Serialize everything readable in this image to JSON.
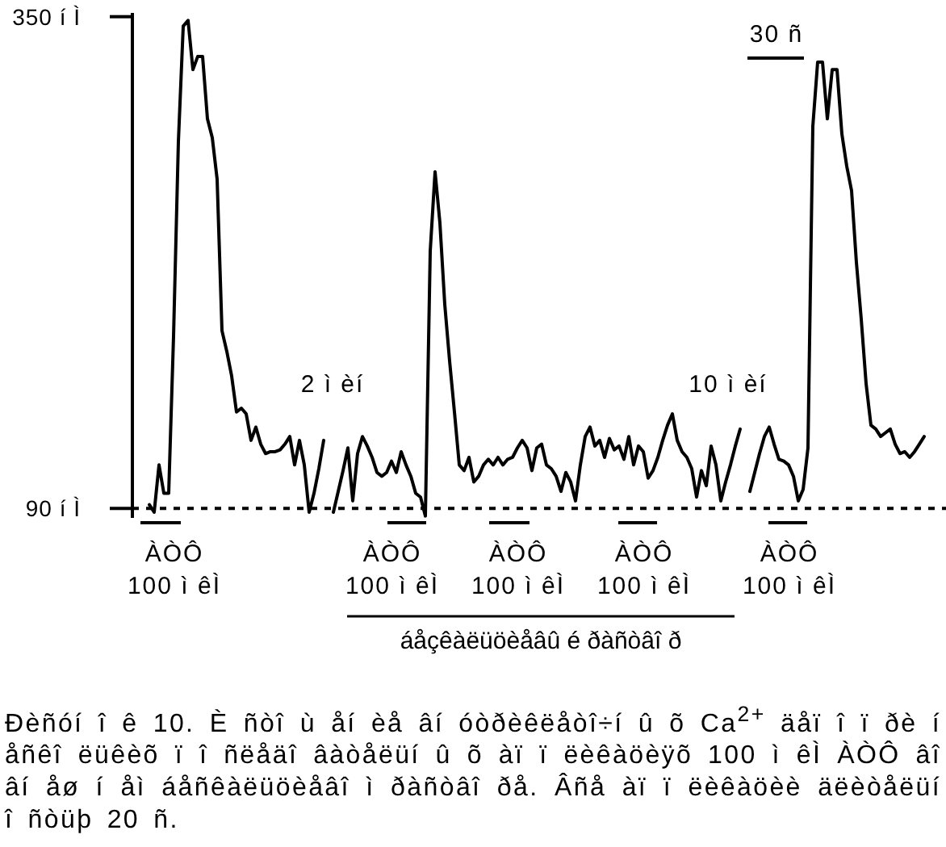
{
  "chart_data": {
    "type": "line",
    "categories": [
      null,
      null,
      null,
      null,
      null,
      null,
      null,
      null,
      null,
      null,
      null,
      null,
      null,
      null,
      null,
      null,
      null,
      null,
      null,
      null,
      null,
      null,
      null,
      null,
      null,
      null,
      null,
      null,
      null,
      null,
      null,
      null,
      null,
      null,
      null,
      null,
      null,
      null,
      null,
      null,
      null,
      null,
      null,
      null,
      null,
      null,
      null,
      null,
      null,
      null,
      null,
      null,
      null,
      null,
      null,
      null,
      null,
      null,
      null,
      null,
      null,
      null,
      null,
      null,
      null,
      null,
      null,
      null,
      null,
      null,
      null,
      null,
      null,
      null,
      null,
      null,
      null,
      null,
      null,
      null,
      null,
      null,
      null,
      null,
      null,
      null,
      null,
      null,
      null,
      null,
      null,
      null,
      null,
      null,
      null,
      null,
      null,
      null,
      null,
      null,
      null,
      null,
      null,
      null,
      null,
      null,
      null,
      null,
      null,
      null,
      null,
      null,
      null,
      null,
      null,
      null,
      null,
      null,
      null,
      null,
      null,
      null,
      null,
      null,
      null,
      null,
      null,
      null,
      null,
      null,
      null,
      null,
      null,
      null,
      null,
      null,
      null,
      null,
      null,
      null,
      null,
      null,
      null,
      null,
      null,
      null,
      null,
      null,
      null,
      null,
      null,
      null,
      null,
      null,
      null,
      null,
      null,
      null,
      null,
      null,
      null,
      null,
      null,
      null,
      null,
      null,
      null,
      null
    ],
    "series": [
      {
        "color": "#000000",
        "values": [
          null,
          null,
          null,
          92,
          88,
          113,
          98,
          98,
          181,
          284,
          345,
          348,
          322,
          329,
          329,
          296,
          286,
          264,
          184,
          173,
          160,
          141,
          143,
          140,
          126,
          133,
          124,
          119,
          120,
          120,
          121,
          124,
          128,
          113,
          126,
          113,
          88,
          98,
          111,
          126,
          null,
          88,
          99,
          110,
          122,
          94,
          119,
          128,
          123,
          117,
          109,
          107,
          109,
          115,
          109,
          120,
          113,
          107,
          98,
          96,
          86,
          226,
          268,
          241,
          198,
          168,
          141,
          113,
          110,
          117,
          104,
          107,
          113,
          116,
          113,
          117,
          113,
          116,
          117,
          122,
          126,
          122,
          110,
          122,
          124,
          113,
          111,
          107,
          99,
          109,
          104,
          94,
          113,
          128,
          133,
          123,
          126,
          117,
          127,
          121,
          123,
          116,
          128,
          113,
          123,
          120,
          106,
          110,
          117,
          126,
          134,
          140,
          126,
          120,
          117,
          111,
          96,
          110,
          102,
          123,
          113,
          94,
          104,
          113,
          123,
          132,
          null,
          99,
          109,
          119,
          128,
          133,
          124,
          116,
          115,
          113,
          107,
          94,
          100,
          122,
          292,
          326,
          326,
          296,
          322,
          322,
          288,
          271,
          258,
          220,
          190,
          156,
          134,
          132,
          128,
          130,
          132,
          124,
          119,
          120,
          117,
          120,
          124,
          128,
          null,
          null,
          null,
          null
        ]
      }
    ],
    "ylim": [
      85,
      352
    ],
    "yticks": [
      {
        "value": 90,
        "label": "90 í Ì"
      },
      {
        "value": 350,
        "label": "350 í Ì"
      }
    ],
    "ref_lines": [
      {
        "axis": "y",
        "value": 90,
        "color": "#000000",
        "line_style": "dashed"
      }
    ],
    "line_style": "solid",
    "annotations": [
      "2 ì èí",
      "10 ì èí",
      "30 ñ",
      "ÀÒÔ\n100 ì êÌ",
      "ÀÒÔ\n100 ì êÌ",
      "ÀÒÔ\n100 ì êÌ",
      "ÀÒÔ\n100 ì êÌ",
      "ÀÒÔ\n100 ì êÌ",
      "áåçêàëüöèåâû é ðàñòâî ð",
      "Ðèñóí î ê 10. È ñòî ù åí èå âí óòðèêëåòî÷í û õ Ca$^{2+}$ äåï î ï ðè í åñêî ëüêèõ ï î ñëåäî âàòåëüí û õ àï ï ëèêàöèÿõ 100 ì êÌ ÀÒÔ âî âí åø í åì áåñêàëüöèåâî ì ðàñòâî ðå. Âñå àï ï ëèêàöèè äëèòåëüí î ñòüþ 20 ñ."
    ]
  }
}
